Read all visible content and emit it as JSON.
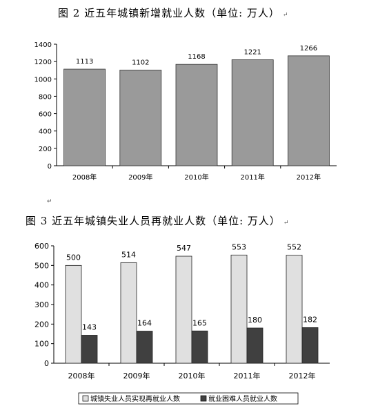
{
  "figure1": {
    "title": "图 2  近五年城镇新增就业人数（单位:  万人）",
    "mark": "↵"
  },
  "figure2": {
    "title": "图 3  近五年城镇失业人员再就业人数（单位:  万人）",
    "mark": "↵"
  },
  "between_mark": "↵",
  "colors": {
    "chart1_bar": "#9a9a9a",
    "chart2_series1": "#e0e0e0",
    "chart2_series2": "#404040",
    "axis": "#000000"
  },
  "chart_data": [
    {
      "type": "bar",
      "categories": [
        "2008年",
        "2009年",
        "2010年",
        "2011年",
        "2012年"
      ],
      "values": [
        1113,
        1102,
        1168,
        1221,
        1266
      ],
      "ylim": [
        0,
        1400
      ],
      "yticks": [
        0,
        200,
        400,
        600,
        800,
        1000,
        1200,
        1400
      ],
      "data_labels": true,
      "grid": false,
      "legend": "none"
    },
    {
      "type": "bar",
      "categories": [
        "2008年",
        "2009年",
        "2010年",
        "2011年",
        "2012年"
      ],
      "series": [
        {
          "name": "城镇失业人员实现再就业人数",
          "values": [
            500,
            514,
            547,
            553,
            552
          ]
        },
        {
          "name": "就业困难人员就业人数",
          "values": [
            143,
            164,
            165,
            180,
            182
          ]
        }
      ],
      "ylim": [
        0,
        600
      ],
      "yticks": [
        0,
        100,
        200,
        300,
        400,
        500,
        600
      ],
      "data_labels": true,
      "grid": false,
      "legend": "bottom"
    }
  ]
}
